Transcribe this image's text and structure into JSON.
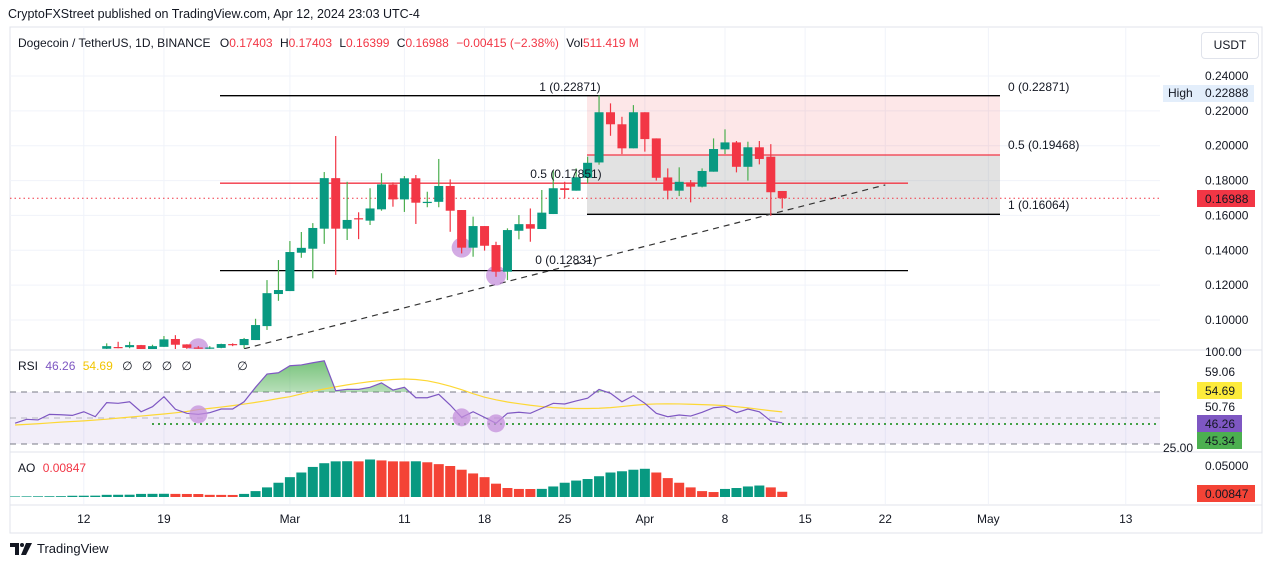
{
  "header": {
    "published": "CryptoFXStreet published on TradingView.com, Apr 12, 2024 23:03 UTC-4"
  },
  "legend": {
    "symbol": "Dogecoin / TetherUS, 1D, BINANCE",
    "o_label": "O",
    "o": "0.17403",
    "h_label": "H",
    "h": "0.17403",
    "l_label": "L",
    "l": "0.16399",
    "c_label": "C",
    "c": "0.16988",
    "change": "−0.00415 (−2.38%)",
    "vol_label": "Vol",
    "vol": "511.419 M"
  },
  "currency_button": "USDT",
  "footer": {
    "brand": "TradingView"
  },
  "colors": {
    "up": "#089981",
    "down": "#f23645",
    "rsi": "#7e57c2",
    "rsi_ma": "#fdd835",
    "highlight": "#c48fdb",
    "grid": "#f0f3fa"
  },
  "price_axis": {
    "ticks": [
      "0.24000",
      "0.22000",
      "0.20000",
      "0.18000",
      "0.16000",
      "0.14000",
      "0.12000",
      "0.10000"
    ],
    "high_label": "High",
    "high_value": "0.22888",
    "last_price": "0.16988"
  },
  "rsi_axis": {
    "ticks": [
      "100.00",
      "59.06",
      "50.76",
      "25.00"
    ],
    "rsi_tag": "46.26",
    "ma_tag": "54.69",
    "level_tag": "45.34"
  },
  "ao_axis": {
    "ticks": [
      "0.05000"
    ],
    "ao_tag": "0.00847"
  },
  "time_axis": [
    {
      "date": "2024-02-12",
      "label": "12"
    },
    {
      "date": "2024-02-19",
      "label": "19"
    },
    {
      "date": "2024-03-01",
      "label": "Mar"
    },
    {
      "date": "2024-03-11",
      "label": "11"
    },
    {
      "date": "2024-03-18",
      "label": "18"
    },
    {
      "date": "2024-03-25",
      "label": "25"
    },
    {
      "date": "2024-04-01",
      "label": "Apr"
    },
    {
      "date": "2024-04-08",
      "label": "8"
    },
    {
      "date": "2024-04-15",
      "label": "15"
    },
    {
      "date": "2024-04-22",
      "label": "22"
    },
    {
      "date": "2024-05-01",
      "label": "May"
    },
    {
      "date": "2024-05-13",
      "label": "13"
    }
  ],
  "drawings": {
    "fib_main": {
      "level_1": "1 (0.22871)",
      "level_0": "0 (0.12831)",
      "level_05": "0.5 (0.17851)",
      "values": [
        0.22871,
        0.17851,
        0.12831
      ]
    },
    "fib_box": {
      "level_0": "0 (0.22871)",
      "level_05": "0.5 (0.19468)",
      "level_1": "1 (0.16064)",
      "values": [
        0.22871,
        0.19468,
        0.16064
      ]
    },
    "trendline": {
      "from": [
        "2024-02-26",
        0.0835
      ],
      "to": [
        "2024-04-22",
        0.1775
      ]
    },
    "price_markers": [
      [
        "2024-02-22",
        0.0838
      ],
      [
        "2024-03-16",
        0.1415
      ],
      [
        "2024-03-19",
        0.1255
      ]
    ],
    "rsi_markers": [
      [
        "2024-02-22",
        52.8
      ],
      [
        "2024-03-16",
        50.5
      ],
      [
        "2024-03-19",
        45.9
      ]
    ],
    "rsi_level": 45.34
  },
  "chart_data": [
    {
      "type": "candlestick",
      "title": "Dogecoin / TetherUS, 1D, BINANCE",
      "ylim": [
        0.09,
        0.245
      ],
      "columns": [
        "date",
        "open",
        "high",
        "low",
        "close"
      ],
      "candles": [
        [
          "2024-02-14",
          0.0835,
          0.0866,
          0.0833,
          0.085
        ],
        [
          "2024-02-15",
          0.0845,
          0.0875,
          0.0838,
          0.0843
        ],
        [
          "2024-02-16",
          0.0844,
          0.0875,
          0.0838,
          0.0856
        ],
        [
          "2024-02-17",
          0.0856,
          0.0857,
          0.0832,
          0.0833
        ],
        [
          "2024-02-18",
          0.0833,
          0.0858,
          0.0832,
          0.085
        ],
        [
          "2024-02-19",
          0.0846,
          0.0908,
          0.0846,
          0.0889
        ],
        [
          "2024-02-20",
          0.0891,
          0.0913,
          0.0833,
          0.0858
        ],
        [
          "2024-02-21",
          0.086,
          0.0861,
          0.0834,
          0.084
        ],
        [
          "2024-02-22",
          0.0842,
          0.085,
          0.0835,
          0.0838
        ],
        [
          "2024-02-23",
          0.0838,
          0.085,
          0.0834,
          0.0842
        ],
        [
          "2024-02-24",
          0.084,
          0.0864,
          0.0838,
          0.0862
        ],
        [
          "2024-02-25",
          0.0862,
          0.0866,
          0.085,
          0.0856
        ],
        [
          "2024-02-26",
          0.0856,
          0.0897,
          0.0838,
          0.0891
        ],
        [
          "2024-02-27",
          0.0885,
          0.1007,
          0.0885,
          0.0971
        ],
        [
          "2024-02-28",
          0.0965,
          0.1229,
          0.0943,
          0.1154
        ],
        [
          "2024-02-29",
          0.1149,
          0.1344,
          0.111,
          0.1172
        ],
        [
          "2024-03-01",
          0.1166,
          0.1453,
          0.1166,
          0.139
        ],
        [
          "2024-03-02",
          0.1386,
          0.1505,
          0.1357,
          0.1414
        ],
        [
          "2024-03-03",
          0.1409,
          0.1556,
          0.1239,
          0.1528
        ],
        [
          "2024-03-04",
          0.1524,
          0.1849,
          0.1437,
          0.1814
        ],
        [
          "2024-03-05",
          0.1814,
          0.2056,
          0.1259,
          0.1524
        ],
        [
          "2024-03-06",
          0.1524,
          0.1793,
          0.1459,
          0.1574
        ],
        [
          "2024-03-07",
          0.1584,
          0.1618,
          0.1464,
          0.158
        ],
        [
          "2024-03-08",
          0.157,
          0.1756,
          0.1545,
          0.164
        ],
        [
          "2024-03-09",
          0.1635,
          0.1842,
          0.1627,
          0.1778
        ],
        [
          "2024-03-10",
          0.1778,
          0.179,
          0.165,
          0.1692
        ],
        [
          "2024-03-11",
          0.1692,
          0.1826,
          0.162,
          0.1813
        ],
        [
          "2024-03-12",
          0.1813,
          0.1832,
          0.1551,
          0.1673
        ],
        [
          "2024-03-13",
          0.1673,
          0.1736,
          0.1647,
          0.1678
        ],
        [
          "2024-03-14",
          0.1678,
          0.1924,
          0.1647,
          0.1769
        ],
        [
          "2024-03-15",
          0.1769,
          0.1807,
          0.1506,
          0.1627
        ],
        [
          "2024-03-16",
          0.1631,
          0.1631,
          0.1382,
          0.1415
        ],
        [
          "2024-03-17",
          0.1415,
          0.1593,
          0.1363,
          0.1539
        ],
        [
          "2024-03-18",
          0.1539,
          0.1539,
          0.1398,
          0.1426
        ],
        [
          "2024-03-19",
          0.143,
          0.1449,
          0.1248,
          0.1277
        ],
        [
          "2024-03-20",
          0.1277,
          0.1526,
          0.1229,
          0.1516
        ],
        [
          "2024-03-21",
          0.1512,
          0.1602,
          0.1463,
          0.155
        ],
        [
          "2024-03-22",
          0.155,
          0.164,
          0.1449,
          0.1524
        ],
        [
          "2024-03-23",
          0.1522,
          0.1746,
          0.1522,
          0.1616
        ],
        [
          "2024-03-24",
          0.1608,
          0.186,
          0.1608,
          0.1756
        ],
        [
          "2024-03-25",
          0.1756,
          0.1793,
          0.1698,
          0.1746
        ],
        [
          "2024-03-26",
          0.1742,
          0.187,
          0.1742,
          0.1819
        ],
        [
          "2024-03-27",
          0.1816,
          0.1937,
          0.1784,
          0.1902
        ],
        [
          "2024-03-28",
          0.1904,
          0.22888,
          0.1891,
          0.2192
        ],
        [
          "2024-03-29",
          0.2192,
          0.2243,
          0.2057,
          0.2123
        ],
        [
          "2024-03-30",
          0.2123,
          0.2166,
          0.1952,
          0.1985
        ],
        [
          "2024-03-31",
          0.1985,
          0.2233,
          0.1985,
          0.2192
        ],
        [
          "2024-04-01",
          0.2192,
          0.2192,
          0.1966,
          0.2038
        ],
        [
          "2024-04-02",
          0.2042,
          0.2042,
          0.18,
          0.1816
        ],
        [
          "2024-04-03",
          0.1818,
          0.187,
          0.1692,
          0.1742
        ],
        [
          "2024-04-04",
          0.1742,
          0.1876,
          0.1711,
          0.1793
        ],
        [
          "2024-04-05",
          0.179,
          0.1803,
          0.1675,
          0.1765
        ],
        [
          "2024-04-06",
          0.1765,
          0.187,
          0.1761,
          0.1855
        ],
        [
          "2024-04-07",
          0.1851,
          0.2042,
          0.1851,
          0.1981
        ],
        [
          "2024-04-08",
          0.1979,
          0.2094,
          0.1952,
          0.2019
        ],
        [
          "2024-04-09",
          0.2019,
          0.2027,
          0.1847,
          0.1879
        ],
        [
          "2024-04-10",
          0.1879,
          0.2023,
          0.18,
          0.1991
        ],
        [
          "2024-04-11",
          0.1991,
          0.2027,
          0.1893,
          0.1924
        ],
        [
          "2024-04-12",
          0.1937,
          0.2009,
          0.1598,
          0.1733
        ],
        [
          "2024-04-13",
          0.17403,
          0.17403,
          0.16399,
          0.16988
        ]
      ]
    },
    {
      "type": "line",
      "title": "RSI",
      "ylim": [
        25,
        100
      ],
      "bands": [
        30,
        50,
        70
      ],
      "first_date": "2024-02-06",
      "series": [
        {
          "name": "46.26",
          "values": [
            46,
            49,
            48.5,
            52.8,
            52.5,
            52,
            54.8,
            51,
            61.8,
            61.3,
            62.5,
            54.8,
            58.7,
            66.4,
            56.7,
            53.6,
            52.8,
            54.1,
            56.9,
            56.9,
            62.5,
            73.6,
            83.8,
            84.8,
            90.2,
            90.8,
            92.5,
            94,
            71,
            72,
            72,
            73.6,
            77,
            71.5,
            73.6,
            65.6,
            65.6,
            68.2,
            60,
            50.5,
            54.8,
            50.5,
            45.9,
            53.6,
            54.4,
            53.6,
            57.5,
            61.3,
            60.8,
            63.1,
            65.2,
            72,
            69,
            62.5,
            67.2,
            61.3,
            53.6,
            51,
            52.3,
            51.5,
            54.4,
            57.9,
            58.7,
            54.1,
            56.9,
            54.8,
            47.7,
            46.26
          ]
        },
        {
          "name": "54.69",
          "values": [
            44.6,
            45.1,
            45.6,
            46.2,
            46.8,
            47.3,
            47.8,
            48.4,
            49.1,
            49.9,
            50.7,
            51.5,
            52.3,
            53.1,
            54,
            55,
            56.5,
            57.4,
            58.4,
            59.5,
            60.7,
            62,
            63.4,
            65,
            66.4,
            68.5,
            70.6,
            72.3,
            74,
            75.5,
            76.8,
            78,
            78.9,
            79.6,
            80,
            79.6,
            78.6,
            76.8,
            74.5,
            71.8,
            68.7,
            66,
            64,
            62.3,
            61,
            59.8,
            58.8,
            58,
            57.5,
            57.3,
            57.3,
            57.5,
            58,
            58.8,
            59.7,
            60.5,
            60.8,
            60.9,
            60.8,
            60.6,
            60.3,
            60,
            59.5,
            58.7,
            57.8,
            56.7,
            55.6,
            54.69
          ]
        }
      ],
      "extra_legend": [
        "∅",
        "∅",
        "∅",
        "∅",
        "∅"
      ]
    },
    {
      "type": "bar",
      "title": "AO",
      "value_label": "0.00847",
      "first_date": "2024-02-05",
      "values": [
        0.0008,
        0.0009,
        0.001,
        0.0011,
        0.0012,
        0.0013,
        0.002,
        0.0021,
        0.0022,
        0.0035,
        0.0036,
        0.0037,
        0.005,
        0.0051,
        0.0052,
        0.005,
        0.0049,
        0.0048,
        0.0035,
        0.0034,
        0.0033,
        0.005,
        0.0095,
        0.0155,
        0.023,
        0.032,
        0.0395,
        0.0485,
        0.0545,
        0.0575,
        0.0577,
        0.0575,
        0.0605,
        0.059,
        0.0575,
        0.0574,
        0.0576,
        0.056,
        0.053,
        0.05,
        0.044,
        0.038,
        0.032,
        0.0215,
        0.0145,
        0.013,
        0.0129,
        0.0131,
        0.017,
        0.023,
        0.0265,
        0.029,
        0.0335,
        0.0395,
        0.0415,
        0.044,
        0.0455,
        0.0395,
        0.0305,
        0.023,
        0.0155,
        0.0095,
        0.008,
        0.013,
        0.0145,
        0.017,
        0.0185,
        0.0155,
        0.00847
      ]
    }
  ]
}
